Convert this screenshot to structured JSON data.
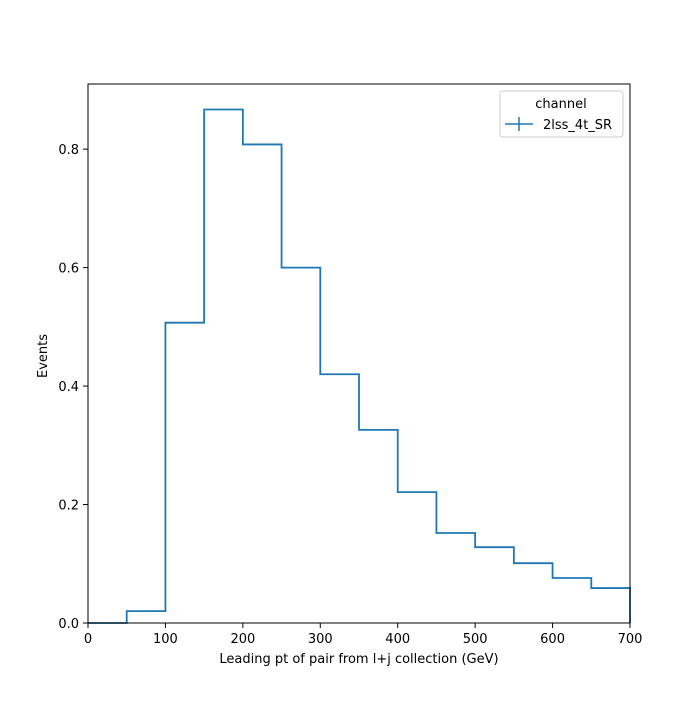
{
  "chart_data": {
    "type": "line",
    "style": "step-histogram",
    "xlabel": "Leading pt of pair from l+j collection (GeV)",
    "ylabel": "Events",
    "xlim": [
      0,
      700
    ],
    "ylim": [
      0,
      0.91
    ],
    "x_ticks": [
      0,
      100,
      200,
      300,
      400,
      500,
      600,
      700
    ],
    "y_ticks": [
      0.0,
      0.2,
      0.4,
      0.6,
      0.8
    ],
    "x_tick_labels": [
      "0",
      "100",
      "200",
      "300",
      "400",
      "500",
      "600",
      "700"
    ],
    "y_tick_labels": [
      "0.0",
      "0.2",
      "0.4",
      "0.6",
      "0.8"
    ],
    "grid": false,
    "legend": {
      "title": "channel",
      "placement": "top-right"
    },
    "series": [
      {
        "name": "2lss_4t_SR",
        "color": "#1f77b4",
        "bin_edges": [
          0,
          50,
          100,
          150,
          200,
          250,
          300,
          350,
          400,
          450,
          500,
          550,
          600,
          650,
          700
        ],
        "values": [
          0.0,
          0.02,
          0.507,
          0.867,
          0.808,
          0.6,
          0.42,
          0.326,
          0.221,
          0.152,
          0.128,
          0.101,
          0.076,
          0.059
        ]
      }
    ]
  }
}
